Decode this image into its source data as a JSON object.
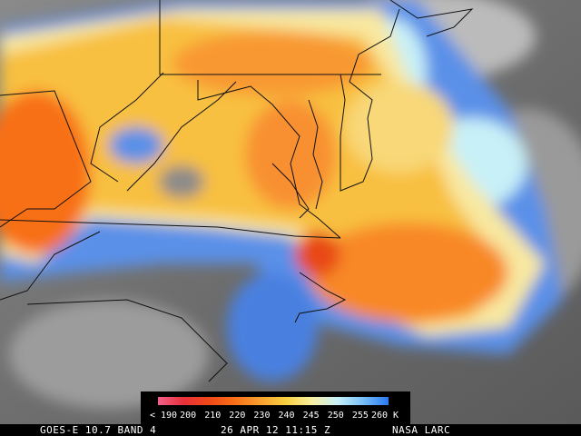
{
  "colorbar": {
    "labels": [
      "< 190",
      "200",
      "210",
      "220",
      "230",
      "240",
      "245",
      "250",
      "255",
      "260 K"
    ],
    "colors": [
      "#f0608a",
      "#e8303a",
      "#f04818",
      "#f87018",
      "#f8a030",
      "#f8d040",
      "#f8f0a0",
      "#c8f0f8",
      "#78c0f8",
      "#2878f0"
    ]
  },
  "footer": {
    "satellite": "GOES-E 10.7 BAND 4",
    "time": "26 APR 12 11:15 Z",
    "source": "NASA LARC"
  }
}
